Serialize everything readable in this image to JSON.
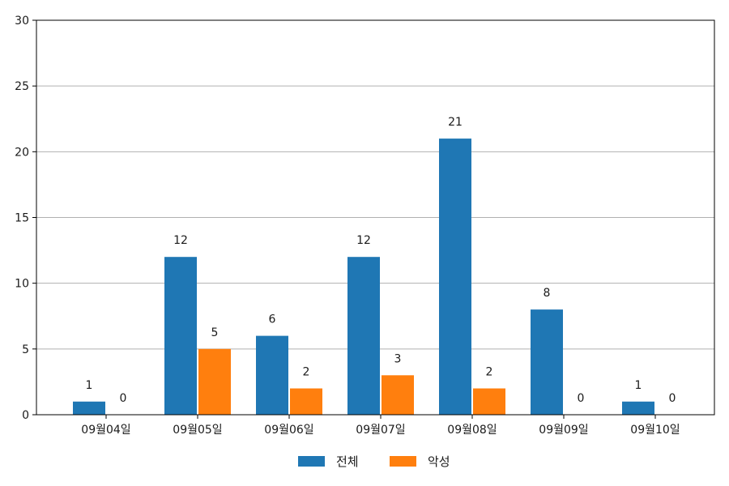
{
  "chart_data": {
    "type": "bar",
    "title": "",
    "xlabel": "",
    "ylabel": "",
    "categories": [
      "09월04일",
      "09월05일",
      "09월06일",
      "09월07일",
      "09월08일",
      "09월09일",
      "09월10일"
    ],
    "series": [
      {
        "name": "전체",
        "color": "#1f77b4",
        "values": [
          1,
          12,
          6,
          12,
          21,
          8,
          1
        ]
      },
      {
        "name": "악성",
        "color": "#ff7f0e",
        "values": [
          0,
          5,
          2,
          3,
          2,
          0,
          0
        ]
      }
    ],
    "ylim": [
      0,
      30
    ],
    "yticks": [
      0,
      5,
      10,
      15,
      20,
      25,
      30
    ],
    "grid": "horizontal",
    "legend": "bottom-center"
  }
}
